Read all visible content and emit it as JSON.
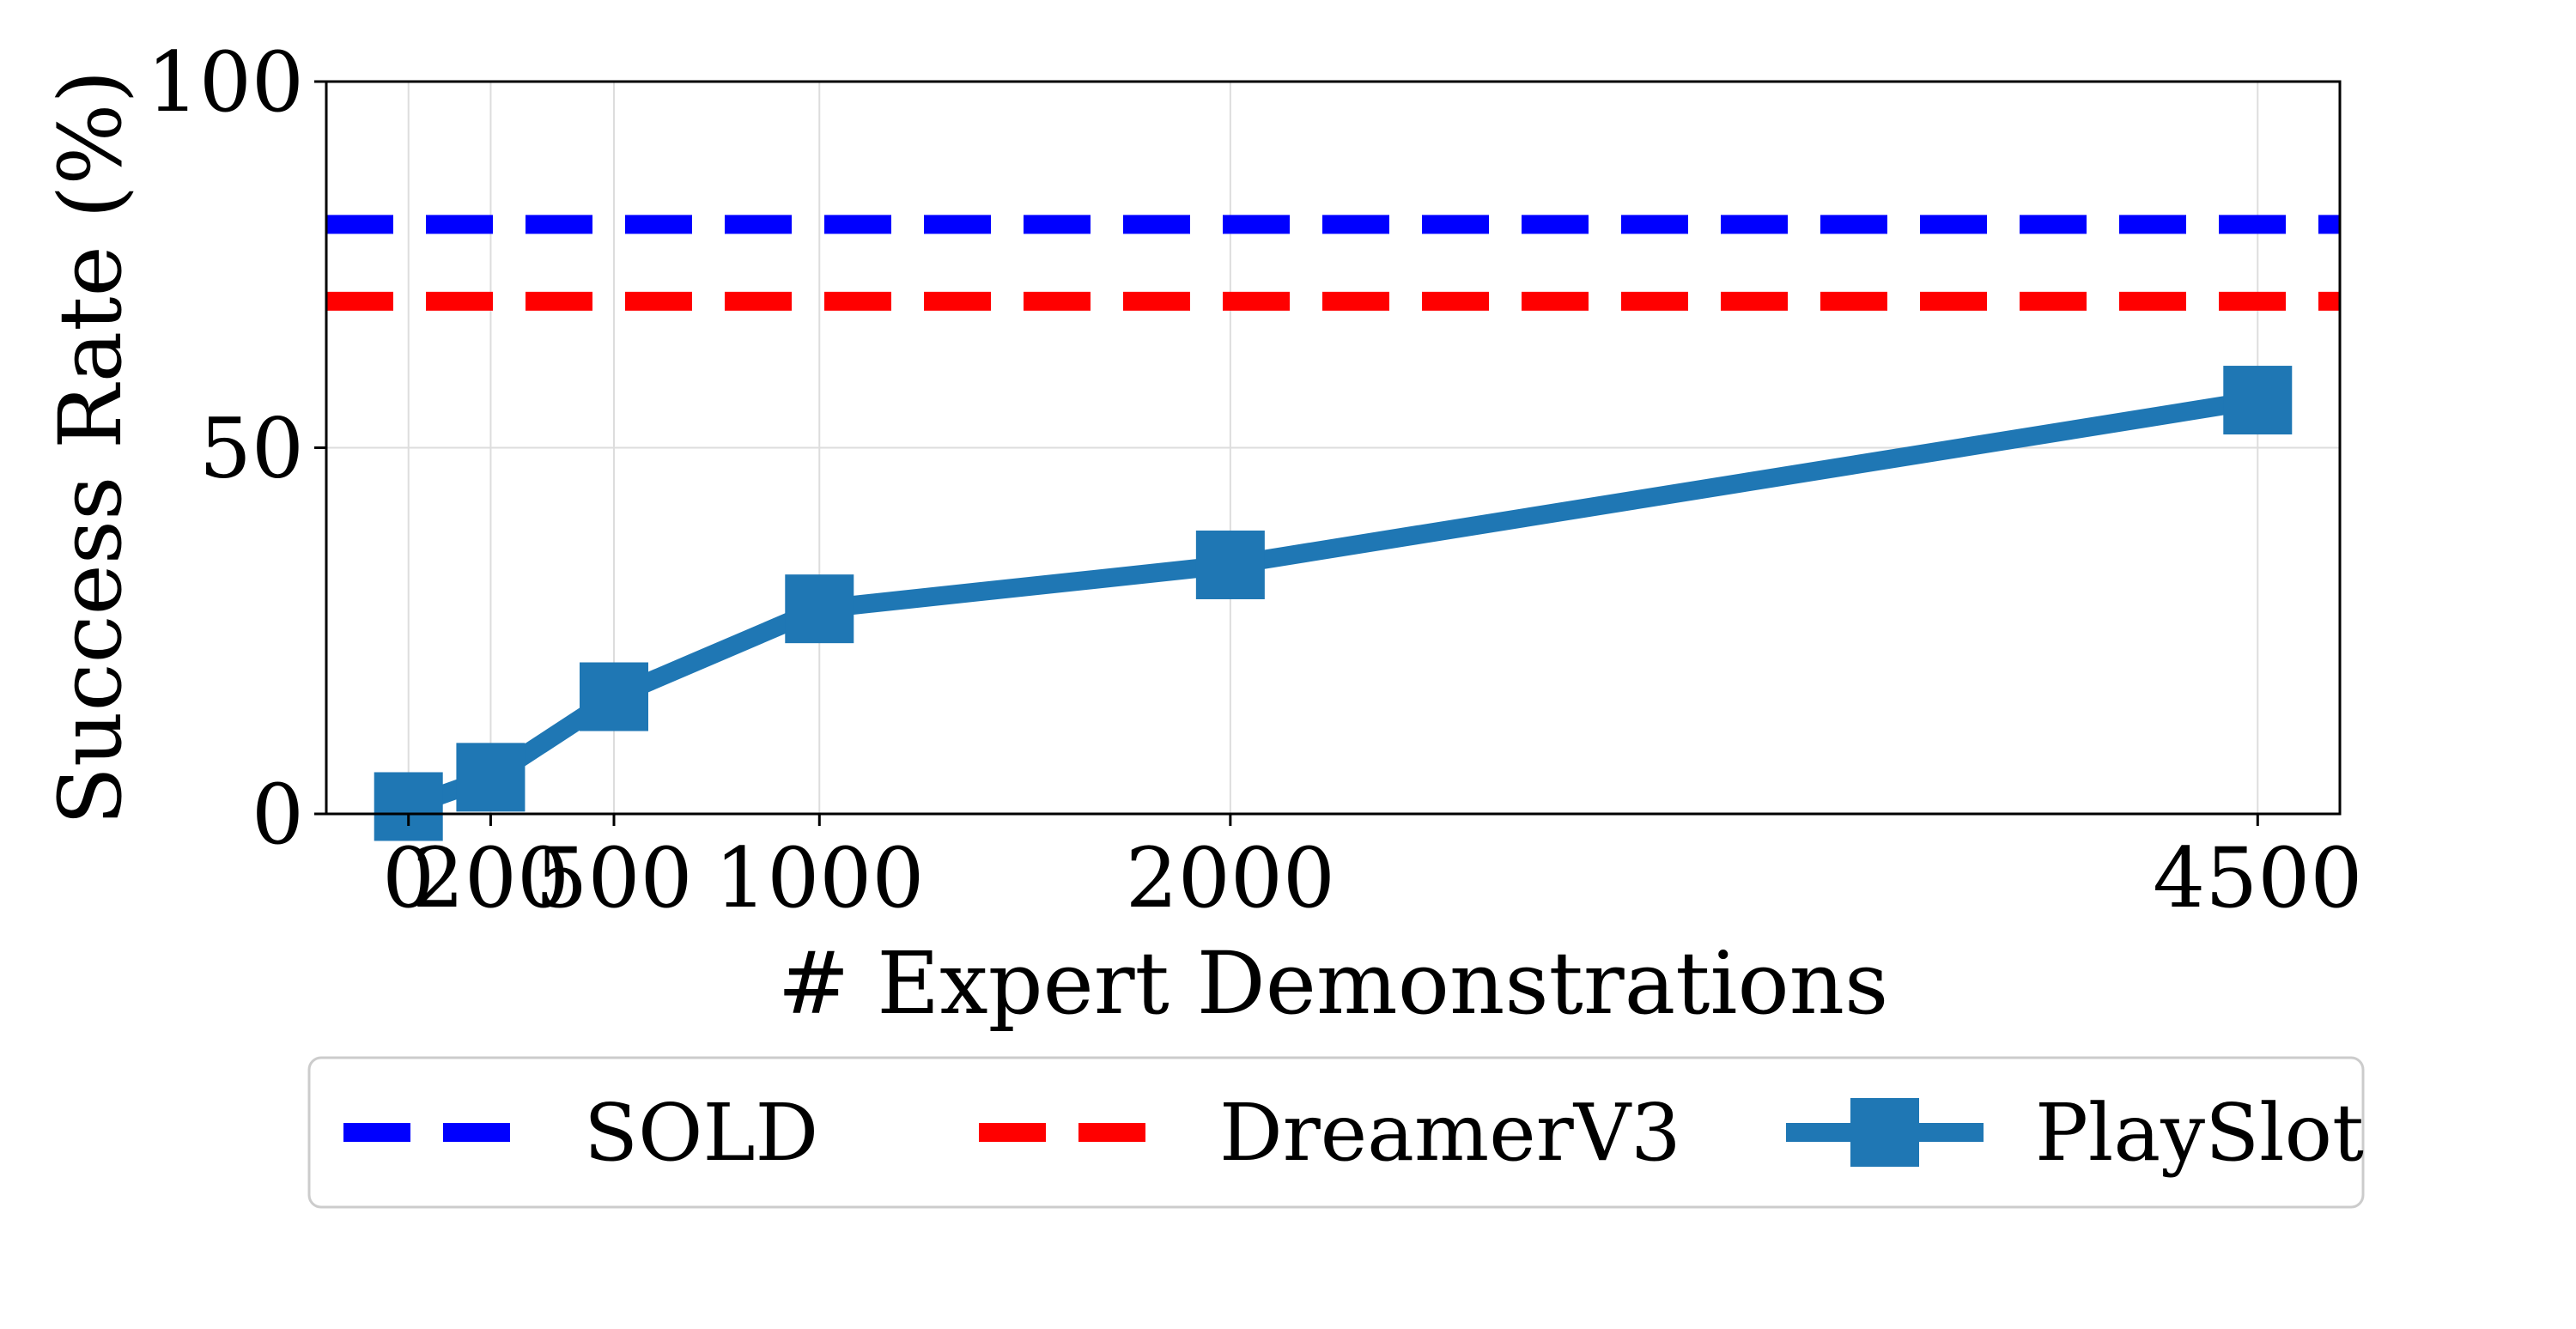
{
  "chart_data": {
    "type": "line",
    "title": "",
    "xlabel": "# Expert Demonstrations",
    "ylabel": "Success Rate (%)",
    "xlim": [
      -200,
      4700
    ],
    "ylim": [
      0,
      100
    ],
    "x_ticks": [
      0,
      200,
      500,
      1000,
      2000,
      4500
    ],
    "x_tick_labels": [
      "0",
      "200",
      "500",
      "1000",
      "2000",
      "4500"
    ],
    "y_ticks": [
      0,
      50,
      100
    ],
    "y_tick_labels": [
      "0",
      "50",
      "100"
    ],
    "grid": true,
    "legend_position": "bottom-outside",
    "series": [
      {
        "name": "SOLD",
        "style": "dashed-horizontal",
        "color": "#0000ff",
        "value": 80.5
      },
      {
        "name": "DreamerV3",
        "style": "dashed-horizontal",
        "color": "#ff0000",
        "value": 70
      },
      {
        "name": "PlaySlot",
        "style": "line-square-marker",
        "color": "#1f77b4",
        "x": [
          0,
          200,
          500,
          1000,
          2000,
          4500
        ],
        "y": [
          1,
          5,
          16,
          28,
          34,
          56.5
        ]
      }
    ]
  }
}
